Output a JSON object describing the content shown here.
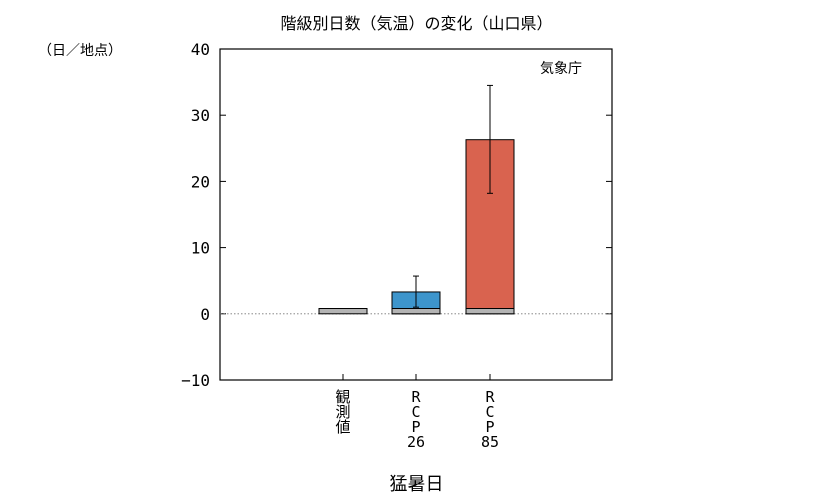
{
  "chart_data": {
    "type": "bar",
    "title": "階級別日数（気温）の変化（山口県）",
    "ylabel": "（日／地点）",
    "xlabel": "猛暑日",
    "source": "気象庁",
    "ylim": [
      -10,
      40
    ],
    "yticks": [
      "40",
      "30",
      "20",
      "10",
      "0",
      "−10"
    ],
    "categories": [
      {
        "lines": [
          "観",
          "測",
          "値"
        ]
      },
      {
        "lines": [
          "R",
          "C",
          "P",
          "26"
        ]
      },
      {
        "lines": [
          "R",
          "C",
          "P",
          "85"
        ]
      }
    ],
    "series": [
      {
        "values": [
          0.8,
          0.8,
          0.8
        ],
        "color": "#b4b4b4"
      },
      {
        "values": [
          null,
          3.3,
          26.3
        ],
        "color_by_category": [
          null,
          "#3d95cc",
          "#d9634f"
        ],
        "error_low": [
          null,
          1.0,
          18.2
        ],
        "error_high": [
          null,
          5.7,
          34.5
        ]
      }
    ],
    "zero_line": "dotted",
    "grid": false
  }
}
